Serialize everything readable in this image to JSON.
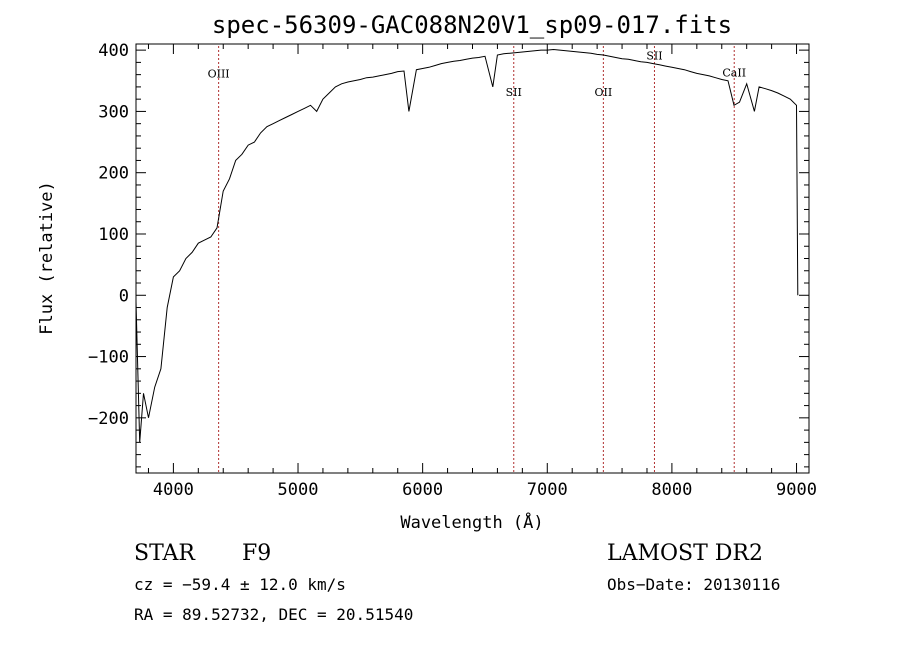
{
  "chart_data": {
    "type": "line",
    "title": "spec-56309-GAC088N20V1_sp09-017.fits",
    "xlabel": "Wavelength (Å)",
    "ylabel": "Flux (relative)",
    "xlim": [
      3700,
      9100
    ],
    "ylim": [
      -290,
      410
    ],
    "xticks": [
      4000,
      5000,
      6000,
      7000,
      8000,
      9000
    ],
    "yticks": [
      -200,
      -100,
      0,
      100,
      200,
      300,
      400
    ],
    "grid": false,
    "series": [
      {
        "x": [
          3700,
          3730,
          3760,
          3800,
          3850,
          3900,
          3950,
          4000,
          4050,
          4100,
          4150,
          4200,
          4250,
          4300,
          4350,
          4400,
          4450,
          4500,
          4550,
          4600,
          4650,
          4700,
          4750,
          4800,
          4850,
          4900,
          4950,
          5000,
          5050,
          5100,
          5150,
          5200,
          5250,
          5300,
          5350,
          5400,
          5450,
          5500,
          5550,
          5600,
          5650,
          5700,
          5750,
          5800,
          5850,
          5890,
          5950,
          6000,
          6050,
          6100,
          6150,
          6200,
          6250,
          6300,
          6350,
          6400,
          6450,
          6500,
          6563,
          6600,
          6650,
          6700,
          6750,
          6800,
          6850,
          6900,
          6950,
          7000,
          7050,
          7100,
          7150,
          7200,
          7250,
          7300,
          7350,
          7400,
          7450,
          7500,
          7550,
          7600,
          7650,
          7700,
          7750,
          7800,
          7850,
          7900,
          7950,
          8000,
          8050,
          8100,
          8150,
          8200,
          8250,
          8300,
          8350,
          8400,
          8450,
          8498,
          8542,
          8600,
          8662,
          8700,
          8750,
          8800,
          8850,
          8900,
          8950,
          9000,
          9010
        ],
        "y": [
          -10,
          -240,
          -160,
          -200,
          -150,
          -120,
          -20,
          30,
          40,
          60,
          70,
          85,
          90,
          95,
          110,
          170,
          190,
          220,
          230,
          245,
          250,
          265,
          275,
          280,
          285,
          290,
          295,
          300,
          305,
          310,
          300,
          320,
          330,
          340,
          345,
          348,
          350,
          352,
          355,
          356,
          358,
          360,
          362,
          365,
          366,
          300,
          368,
          370,
          372,
          375,
          378,
          380,
          382,
          383,
          385,
          387,
          388,
          390,
          340,
          392,
          394,
          395,
          396,
          397,
          398,
          399,
          400,
          400,
          401,
          400,
          399,
          398,
          397,
          396,
          395,
          393,
          392,
          390,
          388,
          386,
          385,
          383,
          381,
          380,
          378,
          376,
          374,
          372,
          370,
          368,
          365,
          362,
          360,
          358,
          355,
          352,
          350,
          310,
          315,
          345,
          300,
          340,
          337,
          334,
          330,
          325,
          320,
          310,
          0
        ]
      }
    ],
    "lines": [
      {
        "name": "OIII",
        "x": 4363,
        "label_y": 355
      },
      {
        "name": "SII",
        "x": 6731,
        "label_y": 325
      },
      {
        "name": "OII",
        "x": 7450,
        "label_y": 325
      },
      {
        "name": "SII",
        "x": 7860,
        "label_y": 385
      },
      {
        "name": "CaII",
        "x": 8500,
        "label_y": 357
      }
    ]
  },
  "info": {
    "class_label": "STAR",
    "subclass": "F9",
    "survey": "LAMOST DR2",
    "cz": "cz = −59.4 ± 12.0 km/s",
    "obs_date": "Obs−Date: 20130116",
    "coords": "RA =  89.52732, DEC =  20.51540"
  }
}
